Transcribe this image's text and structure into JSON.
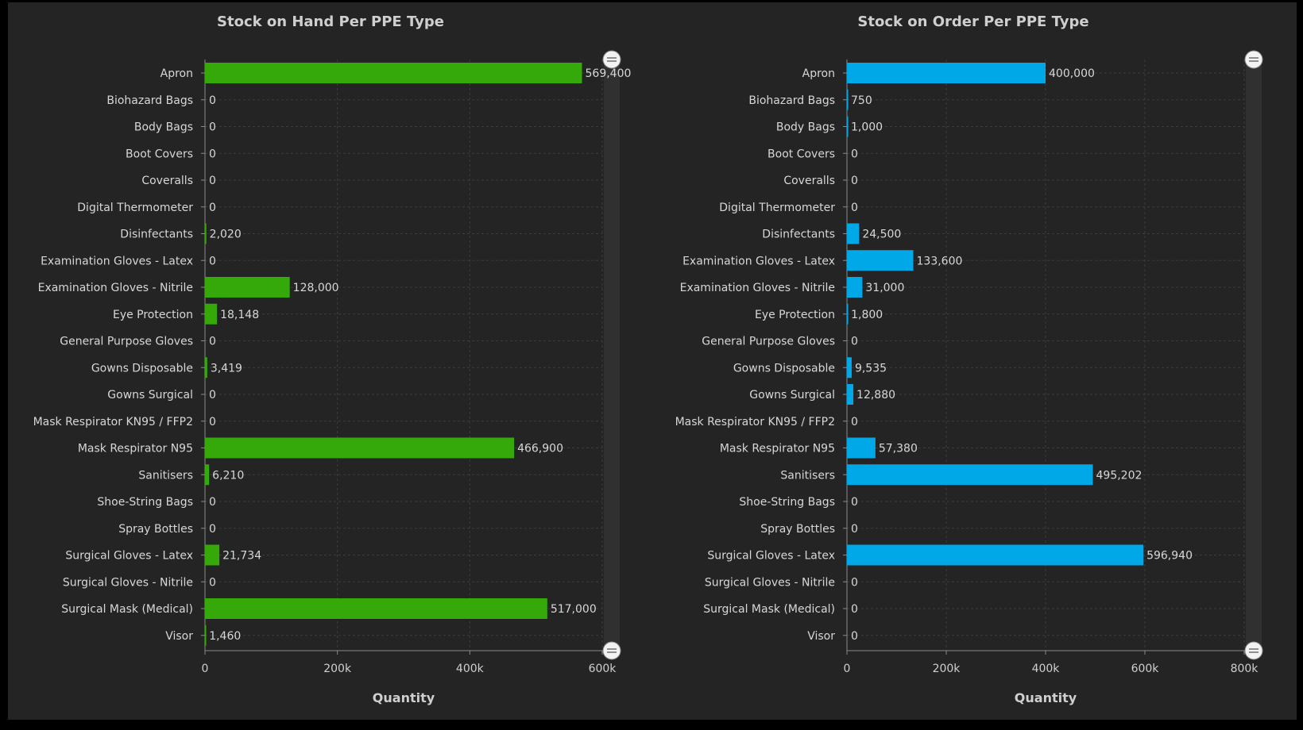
{
  "colors": {
    "left_bar": "#35a80a",
    "right_bar": "#00a8e8"
  },
  "chart_data": [
    {
      "type": "bar",
      "orientation": "horizontal",
      "title": "Stock on Hand Per PPE Type",
      "xlabel": "Quantity",
      "ylabel": "",
      "xlim": [
        0,
        600000
      ],
      "ticks": [
        {
          "v": 0,
          "label": "0"
        },
        {
          "v": 200000,
          "label": "200k"
        },
        {
          "v": 400000,
          "label": "400k"
        },
        {
          "v": 600000,
          "label": "600k"
        }
      ],
      "grid": true,
      "categories": [
        "Apron",
        "Biohazard Bags",
        "Body Bags",
        "Boot Covers",
        "Coveralls",
        "Digital Thermometer",
        "Disinfectants",
        "Examination Gloves - Latex",
        "Examination Gloves - Nitrile",
        "Eye Protection",
        "General Purpose Gloves",
        "Gowns Disposable",
        "Gowns Surgical",
        "Mask Respirator KN95 / FFP2",
        "Mask Respirator N95",
        "Sanitisers",
        "Shoe-String Bags",
        "Spray Bottles",
        "Surgical Gloves - Latex",
        "Surgical Gloves - Nitrile",
        "Surgical Mask (Medical)",
        "Visor"
      ],
      "values": [
        569400,
        0,
        0,
        0,
        0,
        0,
        2020,
        0,
        128000,
        18148,
        0,
        3419,
        0,
        0,
        466900,
        6210,
        0,
        0,
        21734,
        0,
        517000,
        1460
      ],
      "value_labels": [
        "569,400",
        "0",
        "0",
        "0",
        "0",
        "0",
        "2,020",
        "0",
        "128,000",
        "18,148",
        "0",
        "3,419",
        "0",
        "0",
        "466,900",
        "6,210",
        "0",
        "0",
        "21,734",
        "0",
        "517,000",
        "1,460"
      ]
    },
    {
      "type": "bar",
      "orientation": "horizontal",
      "title": "Stock on Order Per PPE Type",
      "xlabel": "Quantity",
      "ylabel": "",
      "xlim": [
        0,
        800000
      ],
      "ticks": [
        {
          "v": 0,
          "label": "0"
        },
        {
          "v": 200000,
          "label": "200k"
        },
        {
          "v": 400000,
          "label": "400k"
        },
        {
          "v": 600000,
          "label": "600k"
        },
        {
          "v": 800000,
          "label": "800k"
        }
      ],
      "grid": true,
      "categories": [
        "Apron",
        "Biohazard Bags",
        "Body Bags",
        "Boot Covers",
        "Coveralls",
        "Digital Thermometer",
        "Disinfectants",
        "Examination Gloves - Latex",
        "Examination Gloves - Nitrile",
        "Eye Protection",
        "General Purpose Gloves",
        "Gowns Disposable",
        "Gowns Surgical",
        "Mask Respirator KN95 / FFP2",
        "Mask Respirator N95",
        "Sanitisers",
        "Shoe-String Bags",
        "Spray Bottles",
        "Surgical Gloves - Latex",
        "Surgical Gloves - Nitrile",
        "Surgical Mask (Medical)",
        "Visor"
      ],
      "values": [
        400000,
        750,
        1000,
        0,
        0,
        0,
        24500,
        133600,
        31000,
        1800,
        0,
        9535,
        12880,
        0,
        57380,
        495202,
        0,
        0,
        596940,
        0,
        0,
        0
      ],
      "value_labels": [
        "400,000",
        "750",
        "1,000",
        "0",
        "0",
        "0",
        "24,500",
        "133,600",
        "31,000",
        "1,800",
        "0",
        "9,535",
        "12,880",
        "0",
        "57,380",
        "495,202",
        "0",
        "0",
        "596,940",
        "0",
        "0",
        "0"
      ]
    }
  ]
}
